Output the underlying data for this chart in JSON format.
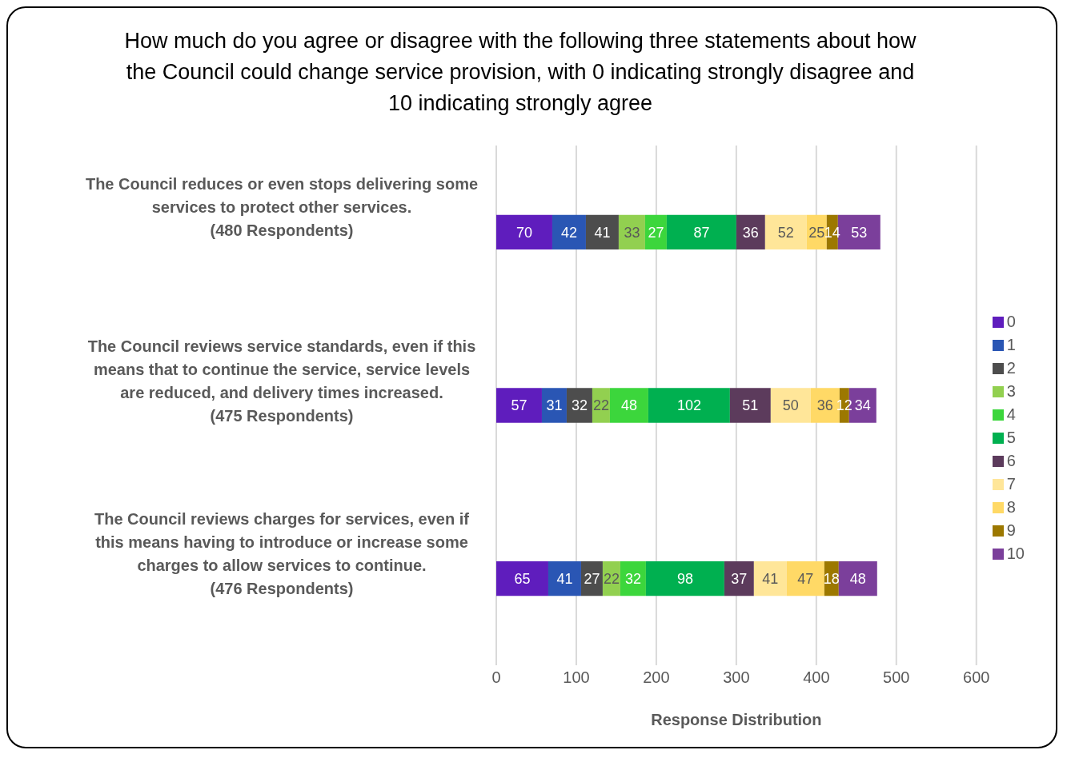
{
  "chart_data": {
    "type": "bar",
    "orientation": "horizontal",
    "stacked": true,
    "title": "How much do you agree or disagree with the following three statements about how the Council could change service provision, with 0 indicating strongly disagree and 10 indicating strongly agree",
    "xlabel": "Response Distribution",
    "categories": [
      "The Council reduces or even stops delivering some services to protect other services.\n(480 Respondents)",
      "The Council reviews service standards, even if this means that to continue the service, service levels are reduced, and delivery times increased.\n(475 Respondents)",
      "The Council reviews charges for services, even if this means having to introduce or increase some charges to allow services to continue.\n(476 Respondents)"
    ],
    "series": [
      {
        "name": "0",
        "color": "#5f1dbd",
        "values": [
          70,
          57,
          65
        ]
      },
      {
        "name": "1",
        "color": "#2a56b4",
        "values": [
          42,
          31,
          41
        ]
      },
      {
        "name": "2",
        "color": "#4d4d4d",
        "values": [
          41,
          32,
          27
        ]
      },
      {
        "name": "3",
        "color": "#92d050",
        "values": [
          33,
          22,
          22
        ]
      },
      {
        "name": "4",
        "color": "#3cd63c",
        "values": [
          27,
          48,
          32
        ]
      },
      {
        "name": "5",
        "color": "#00b050",
        "values": [
          87,
          102,
          98
        ]
      },
      {
        "name": "6",
        "color": "#5c3b5c",
        "values": [
          36,
          51,
          37
        ]
      },
      {
        "name": "7",
        "color": "#ffe699",
        "values": [
          52,
          50,
          41
        ]
      },
      {
        "name": "8",
        "color": "#ffd966",
        "values": [
          25,
          36,
          47
        ]
      },
      {
        "name": "9",
        "color": "#9c7800",
        "values": [
          14,
          12,
          18
        ]
      },
      {
        "name": "10",
        "color": "#7b3f9b",
        "values": [
          53,
          34,
          48
        ]
      }
    ],
    "xlim": [
      0,
      600
    ],
    "xticks": [
      0,
      100,
      200,
      300,
      400,
      500,
      600
    ],
    "grid": "x",
    "legend": "right",
    "data_labels": true
  }
}
